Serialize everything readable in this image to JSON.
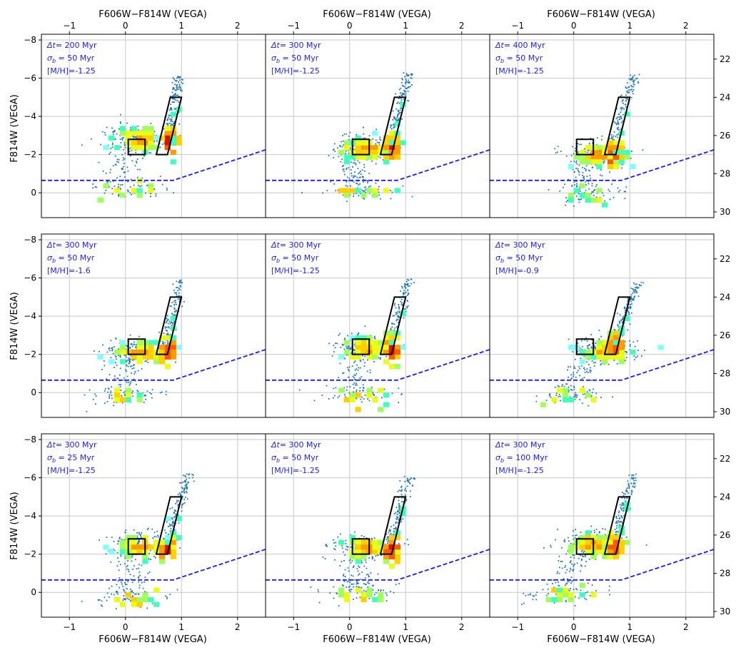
{
  "figure": {
    "top_xlabel": "F606W−F814W (VEGA)",
    "bottom_xlabel": "F606W−F814W (VEGA)",
    "left_ylabel": "F814W (VEGA)"
  },
  "chart_data": {
    "type": "scatter",
    "subtype": "color-magnitude-hess-grid",
    "xlim": [
      -1.5,
      2.5
    ],
    "ylim_left": [
      1.3,
      -8.3
    ],
    "ylim_right": [
      30.3,
      20.7
    ],
    "x_ticks": [
      -1,
      0,
      1,
      2
    ],
    "x_tick_labels": [
      "−1",
      "0",
      "1",
      "2"
    ],
    "y_ticks_left": [
      -8,
      -6,
      -4,
      -2,
      0
    ],
    "y_tick_labels_left": [
      "−8",
      "−6",
      "−4",
      "−2",
      "0"
    ],
    "y_ticks_right": [
      22,
      24,
      26,
      28,
      30
    ],
    "y_tick_labels_right": [
      "22",
      "24",
      "26",
      "28",
      "30"
    ],
    "grid": true,
    "shapes": {
      "box": [
        [
          0.05,
          -2.0
        ],
        [
          0.35,
          -2.0
        ],
        [
          0.35,
          -2.8
        ],
        [
          0.05,
          -2.8
        ]
      ],
      "parallelogram": [
        [
          0.55,
          -2.0
        ],
        [
          0.75,
          -2.0
        ],
        [
          1.0,
          -5.0
        ],
        [
          0.8,
          -5.0
        ]
      ],
      "completeness_line": [
        [
          -1.5,
          -0.65
        ],
        [
          0.85,
          -0.65
        ],
        [
          2.5,
          -2.25
        ]
      ]
    },
    "annotation_labels": {
      "dt": "Δt",
      "sigma": "σ",
      "sigma_sub": "b",
      "mh": "[M/H]"
    },
    "panels": [
      {
        "row": 0,
        "col": 0,
        "dt": "= 200 Myr",
        "sigma": "= 50 Myr",
        "mh": "=-1.25",
        "rc_color": 0.2,
        "rc_mag": -2.9,
        "rgb_color": 0.75,
        "rgb_mag": -2.8,
        "tip": [
          0.97,
          -6.1
        ],
        "hb_mag": -0.2,
        "hb_color": 0.0
      },
      {
        "row": 0,
        "col": 1,
        "dt": "= 300 Myr",
        "sigma": "= 50 Myr",
        "mh": "=-1.25",
        "rc_color": 0.25,
        "rc_mag": -2.4,
        "rgb_color": 0.7,
        "rgb_mag": -2.5,
        "tip": [
          1.07,
          -6.3
        ],
        "hb_mag": -0.1,
        "hb_color": 0.2
      },
      {
        "row": 0,
        "col": 2,
        "dt": "= 400 Myr",
        "sigma": "= 50 Myr",
        "mh": "=-1.25",
        "rc_color": 0.4,
        "rc_mag": -2.1,
        "rgb_color": 0.65,
        "rgb_mag": -2.1,
        "tip": [
          1.07,
          -6.2
        ],
        "hb_mag": 0.0,
        "hb_color": 0.2
      },
      {
        "row": 1,
        "col": 0,
        "dt": "= 300 Myr",
        "sigma": "= 50 Myr",
        "mh": "=-1.6",
        "rc_color": 0.2,
        "rc_mag": -2.2,
        "rgb_color": 0.7,
        "rgb_mag": -2.3,
        "tip": [
          1.0,
          -5.9
        ],
        "hb_mag": 0.1,
        "hb_color": 0.0
      },
      {
        "row": 1,
        "col": 1,
        "dt": "= 300 Myr",
        "sigma": "= 50 Myr",
        "mh": "=-1.25",
        "rc_color": 0.25,
        "rc_mag": -2.4,
        "rgb_color": 0.7,
        "rgb_mag": -2.4,
        "tip": [
          1.07,
          -6.0
        ],
        "hb_mag": 0.1,
        "hb_color": 0.2
      },
      {
        "row": 1,
        "col": 2,
        "dt": "= 300 Myr",
        "sigma": "= 50 Myr",
        "mh": "=-0.9",
        "rc_color": 0.55,
        "rc_mag": -2.3,
        "rgb_color": 0.7,
        "rgb_mag": -2.6,
        "tip": [
          1.15,
          -5.8
        ],
        "hb_mag": 0.1,
        "hb_color": -0.1
      },
      {
        "row": 2,
        "col": 0,
        "dt": "= 300 Myr",
        "sigma": "= 25 Myr",
        "mh": "=-1.25",
        "rc_color": 0.25,
        "rc_mag": -2.5,
        "rgb_color": 0.7,
        "rgb_mag": -2.4,
        "tip": [
          1.13,
          -6.2
        ],
        "hb_mag": 0.3,
        "hb_color": 0.1
      },
      {
        "row": 2,
        "col": 1,
        "dt": "= 300 Myr",
        "sigma": "= 50 Myr",
        "mh": "=-1.25",
        "rc_color": 0.25,
        "rc_mag": -2.4,
        "rgb_color": 0.7,
        "rgb_mag": -2.4,
        "tip": [
          1.07,
          -6.1
        ],
        "hb_mag": 0.0,
        "hb_color": 0.2
      },
      {
        "row": 2,
        "col": 2,
        "dt": "= 300 Myr",
        "sigma": "= 100 Myr",
        "mh": "=-1.25",
        "rc_color": 0.3,
        "rc_mag": -2.6,
        "rgb_color": 0.7,
        "rgb_mag": -2.5,
        "tip": [
          1.07,
          -6.2
        ],
        "hb_mag": 0.1,
        "hb_color": -0.2
      }
    ]
  }
}
